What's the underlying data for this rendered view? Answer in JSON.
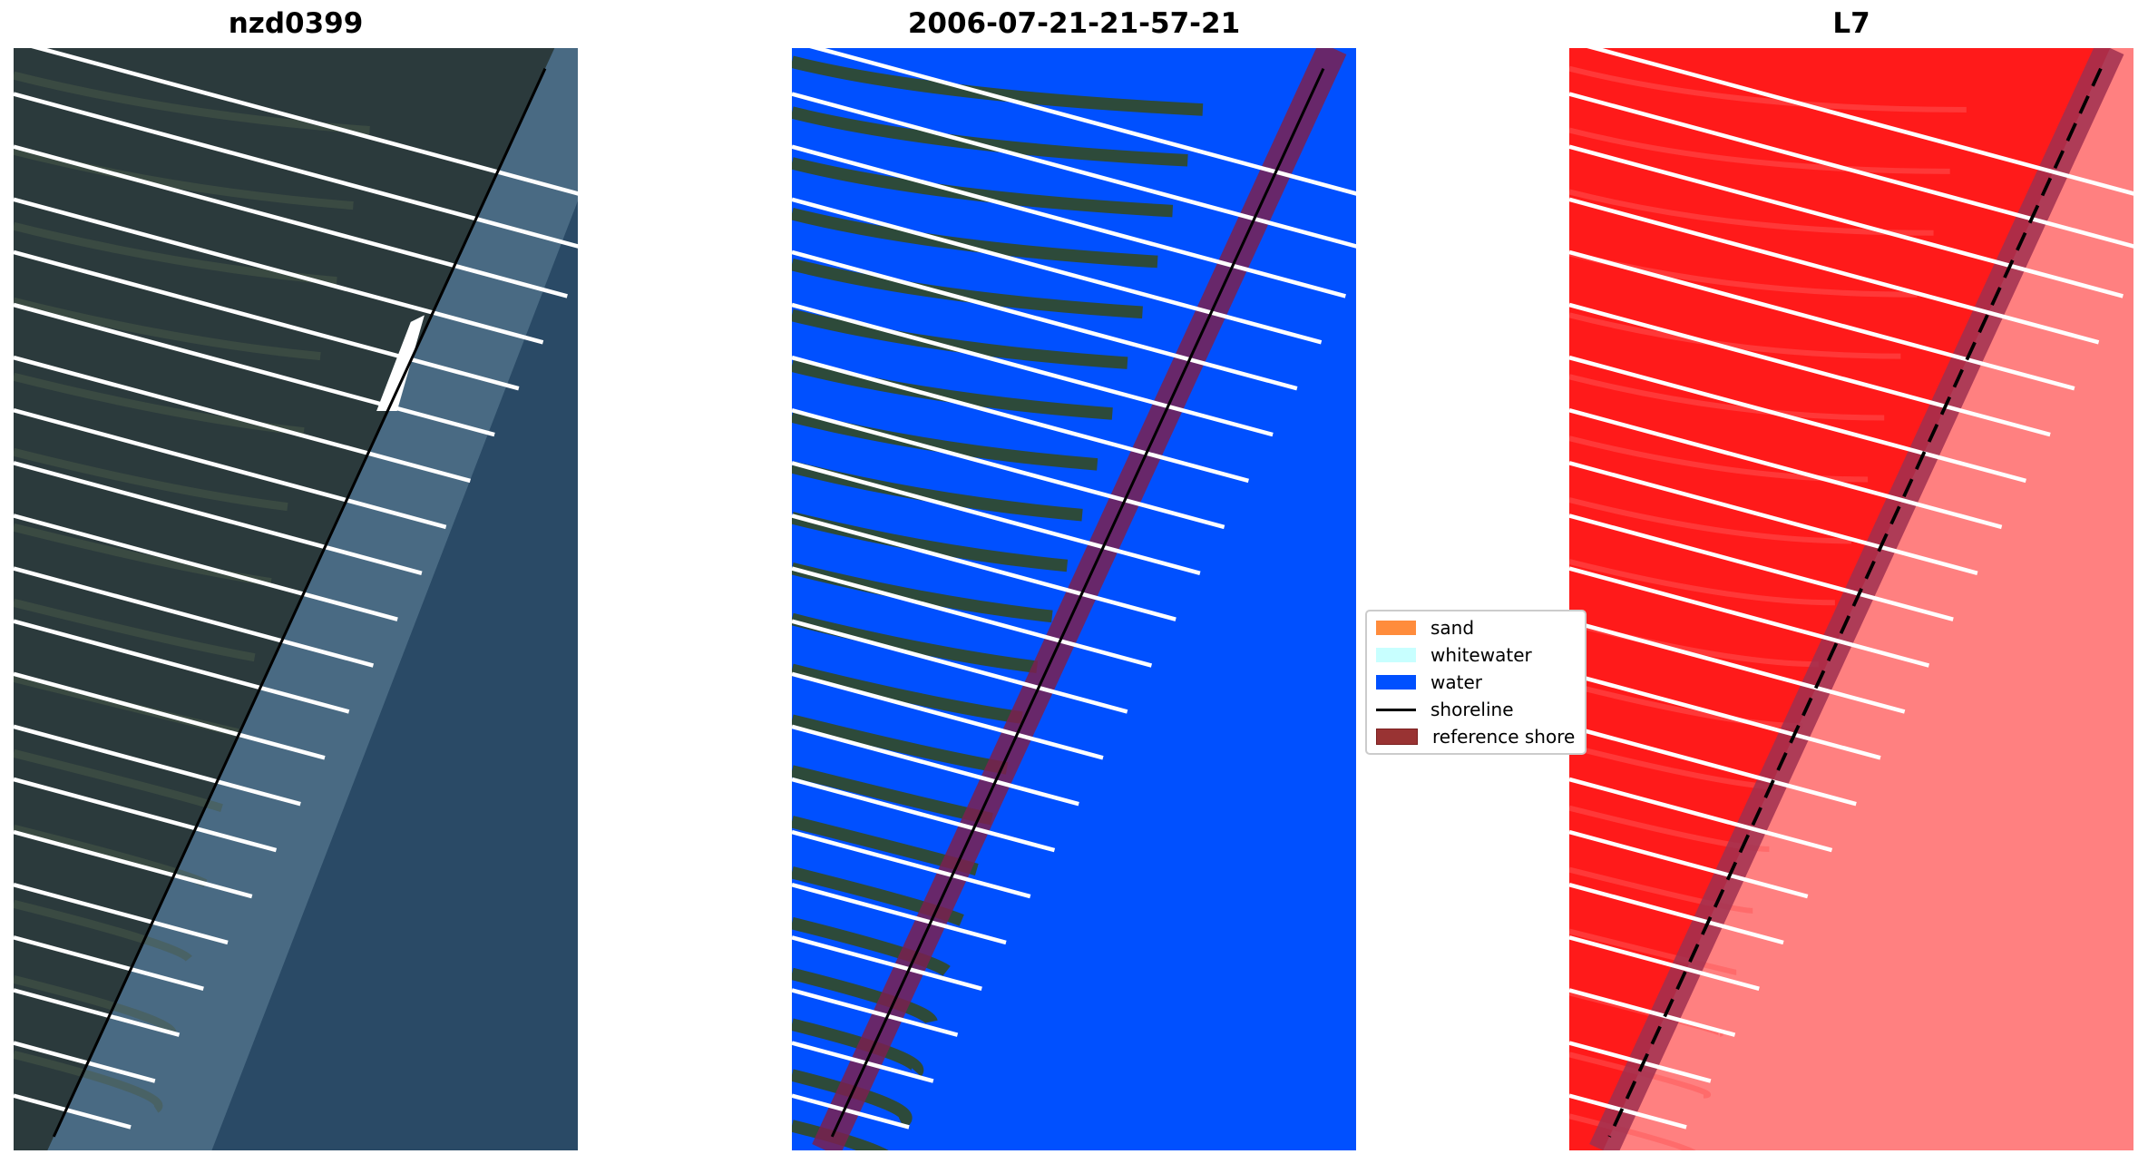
{
  "chart_data": {
    "type": "image-panels",
    "panels": [
      {
        "title": "nzd0399",
        "kind": "rgb"
      },
      {
        "title": "2006-07-21-21-57-21",
        "kind": "classified"
      },
      {
        "title": "L7",
        "kind": "mndwi"
      }
    ],
    "legend": {
      "placement": "center",
      "entries": [
        {
          "label": "sand",
          "color": "#ff8c3c",
          "type": "patch"
        },
        {
          "label": "whitewater",
          "color": "#c8ffff",
          "type": "patch"
        },
        {
          "label": "water",
          "color": "#0050ff",
          "type": "patch"
        },
        {
          "label": "shoreline",
          "color": "#000000",
          "type": "line"
        },
        {
          "label": "reference shoreline buffer",
          "display": "reference shore",
          "color": "#993333",
          "type": "patch"
        }
      ]
    },
    "transect_count": 21
  }
}
